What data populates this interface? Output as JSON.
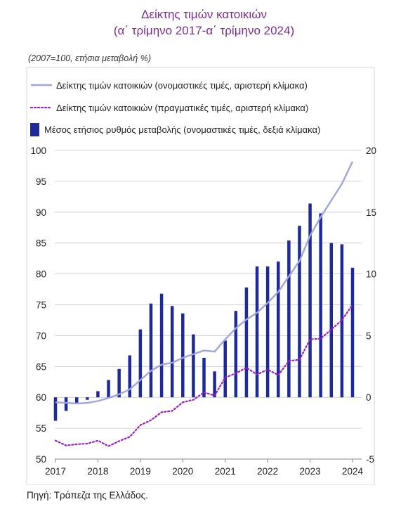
{
  "title_line1": "Δείκτης τιμών κατοικιών",
  "title_line2": "(α΄ τρίμηνο 2017-α΄ τρίμηνο 2024)",
  "unit_note": "(2007=100, ετήσια μεταβολή %)",
  "source": "Πηγή: Τράπεζα της Ελλάδος.",
  "colors": {
    "title": "#7b2d8e",
    "nominal_line": "#9fa6dc",
    "real_line": "#9a1fc7",
    "bars": "#1f2a9a",
    "grid": "#c8c8c8",
    "plot_bg": "#ffffff"
  },
  "chart_data": {
    "type": "bar+line",
    "title": "Δείκτης τιμών κατοικιών",
    "subtitle": "(α΄ τρίμηνο 2017-α΄ τρίμηνο 2024)",
    "grid": true,
    "legend_position": "top",
    "x_ticks": [
      "2017",
      "2018",
      "2019",
      "2020",
      "2021",
      "2022",
      "2023",
      "2024"
    ],
    "left_axis": {
      "ticks": [
        50,
        55,
        60,
        65,
        70,
        75,
        80,
        85,
        90,
        95,
        100
      ],
      "range": [
        50,
        100
      ]
    },
    "right_axis": {
      "ticks": [
        "-5",
        "0",
        "5",
        "10",
        "15",
        "20"
      ],
      "range": [
        -5,
        20
      ]
    },
    "periods": [
      "2017Q1",
      "2017Q2",
      "2017Q3",
      "2017Q4",
      "2018Q1",
      "2018Q2",
      "2018Q3",
      "2018Q4",
      "2019Q1",
      "2019Q2",
      "2019Q3",
      "2019Q4",
      "2020Q1",
      "2020Q2",
      "2020Q3",
      "2020Q4",
      "2021Q1",
      "2021Q2",
      "2021Q3",
      "2021Q4",
      "2022Q1",
      "2022Q2",
      "2022Q3",
      "2022Q4",
      "2023Q1",
      "2023Q2",
      "2023Q3",
      "2023Q4",
      "2024Q1"
    ],
    "series": [
      {
        "name": "Δείκτης τιμών κατοικιών (ονομαστικές τιμές, αριστερή κλίμακα)",
        "kind": "line",
        "axis": "left",
        "values": [
          59.2,
          59.1,
          59.0,
          59.1,
          59.4,
          59.9,
          60.5,
          61.3,
          62.8,
          64.3,
          65.3,
          65.6,
          66.4,
          67.0,
          67.6,
          67.4,
          69.4,
          71.2,
          72.6,
          73.7,
          75.3,
          77.1,
          79.6,
          82.1,
          86.2,
          89.2,
          91.9,
          94.6,
          98.2
        ]
      },
      {
        "name": "Δείκτης τιμών κατοικιών (πραγματικές τιμές, αριστερή κλίμακα)",
        "kind": "dotted-line",
        "axis": "left",
        "values": [
          53.0,
          52.2,
          52.4,
          52.5,
          53.0,
          52.1,
          52.9,
          53.6,
          55.5,
          56.3,
          57.6,
          57.8,
          59.2,
          59.6,
          60.8,
          60.3,
          63.2,
          63.9,
          64.8,
          63.7,
          64.5,
          63.6,
          65.9,
          66.1,
          69.4,
          69.5,
          71.0,
          72.5,
          75.0
        ]
      },
      {
        "name": "Μέσος ετήσιος ρυθμός μεταβολής (ονομαστικές τιμές, δεξιά κλίμακα)",
        "kind": "bar",
        "axis": "right",
        "values": [
          -1.9,
          -1.1,
          -0.5,
          -0.2,
          0.5,
          1.4,
          2.3,
          3.4,
          5.5,
          7.6,
          8.4,
          7.4,
          6.8,
          5.1,
          3.2,
          2.1,
          4.6,
          7.0,
          8.9,
          10.6,
          10.6,
          11.0,
          12.7,
          13.9,
          15.7,
          14.9,
          12.5,
          12.4,
          10.5
        ]
      }
    ]
  }
}
